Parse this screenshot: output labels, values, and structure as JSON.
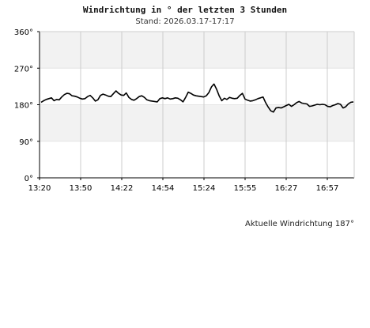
{
  "title": "Windrichtung in ° der letzten 3 Stunden",
  "subtitle": "Stand: 2026.03.17-17:17",
  "footer": "Aktuelle Windrichtung 187°",
  "chart_data": {
    "type": "line",
    "title": "Windrichtung in ° der letzten 3 Stunden",
    "subtitle": "Stand: 2026.03.17-17:17",
    "xlabel": "",
    "ylabel": "",
    "ylim": [
      0,
      360
    ],
    "yticks": [
      "0°",
      "90°",
      "180°",
      "270°",
      "360°"
    ],
    "xticks": [
      "13:20",
      "13:50",
      "14:22",
      "14:54",
      "15:24",
      "15:55",
      "16:27",
      "16:57"
    ],
    "grid": true,
    "banding": "alternating grey/white bands every 90°",
    "line_color": "#000000",
    "series": [
      {
        "values": [
          186,
          190,
          193,
          195,
          197,
          190,
          193,
          192,
          199,
          205,
          208,
          207,
          202,
          201,
          199,
          196,
          194,
          195,
          200,
          203,
          197,
          189,
          192,
          203,
          206,
          204,
          201,
          200,
          207,
          214,
          208,
          204,
          203,
          209,
          198,
          193,
          191,
          195,
          200,
          202,
          198,
          192,
          190,
          189,
          188,
          187,
          195,
          197,
          195,
          197,
          194,
          195,
          197,
          196,
          192,
          187,
          198,
          211,
          208,
          204,
          202,
          201,
          200,
          199,
          202,
          210,
          224,
          231,
          218,
          202,
          190,
          196,
          193,
          198,
          196,
          195,
          196,
          203,
          208,
          194,
          191,
          189,
          190,
          192,
          195,
          197,
          199,
          185,
          174,
          165,
          162,
          172,
          173,
          172,
          175,
          178,
          181,
          176,
          180,
          185,
          188,
          184,
          183,
          182,
          176,
          177,
          179,
          181,
          180,
          181,
          180,
          176,
          175,
          178,
          180,
          183,
          181,
          172,
          175,
          182,
          186,
          187
        ]
      }
    ]
  }
}
